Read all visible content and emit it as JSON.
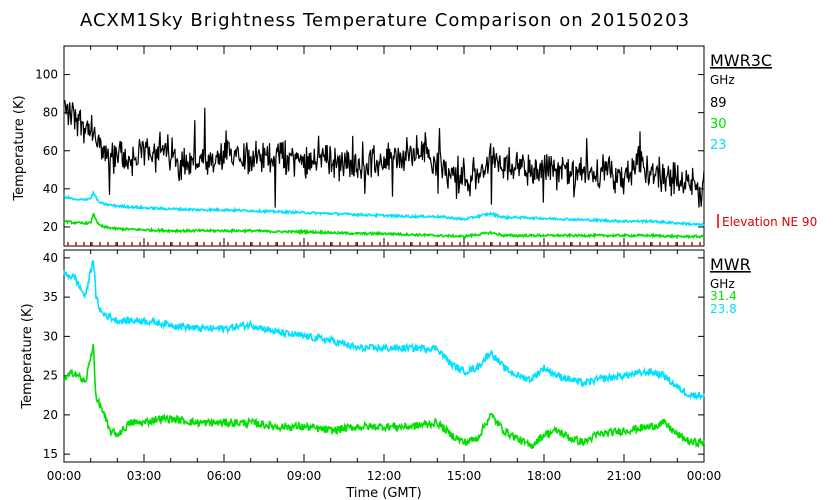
{
  "chart_data": [
    {
      "type": "line",
      "title": "ACXM1Sky Brightness Temperature Comparison on 20150203",
      "ylabel": "Temperature (K)",
      "ylim": [
        10,
        115
      ],
      "yticks": [
        "20",
        "40",
        "60",
        "80",
        "100"
      ],
      "xlim": [
        0,
        24
      ],
      "legend": {
        "heading": "MWR3C",
        "unit": "GHz"
      },
      "series": [
        {
          "name": "89",
          "color": "#000000",
          "x": [
            0,
            0.5,
            1,
            1.5,
            2,
            2.5,
            3,
            3.5,
            4,
            4.5,
            5,
            5.5,
            6,
            6.5,
            7,
            7.5,
            8,
            8.5,
            9,
            9.5,
            10,
            10.5,
            11,
            11.5,
            12,
            12.5,
            13,
            13.5,
            14,
            14.5,
            15,
            15.5,
            16,
            16.5,
            17,
            17.5,
            18,
            18.5,
            19,
            19.5,
            20,
            20.5,
            21,
            21.5,
            22,
            22.5,
            23,
            23.5,
            24
          ],
          "y": [
            83,
            78,
            70,
            58,
            57,
            55,
            58,
            62,
            58,
            53,
            55,
            52,
            56,
            60,
            57,
            55,
            58,
            56,
            55,
            58,
            56,
            52,
            53,
            52,
            54,
            56,
            58,
            60,
            55,
            48,
            47,
            45,
            57,
            50,
            55,
            48,
            52,
            50,
            48,
            47,
            50,
            48,
            45,
            52,
            50,
            48,
            45,
            42,
            40
          ],
          "noise": 8
        },
        {
          "name": "30",
          "color": "#00e000",
          "x": [
            0,
            0.5,
            1,
            1.1,
            1.3,
            1.5,
            2,
            3,
            4,
            5,
            6,
            7,
            8,
            9,
            10,
            11,
            12,
            13,
            14,
            15,
            16,
            16.5,
            17,
            18,
            19,
            20,
            21,
            22,
            23,
            24
          ],
          "y": [
            23,
            22,
            22,
            27,
            21,
            20,
            19,
            18.5,
            18,
            18,
            18,
            18,
            17.5,
            17.5,
            17,
            16.5,
            16.5,
            16,
            15.5,
            15,
            17,
            15.5,
            15.5,
            15.5,
            15.5,
            15.5,
            15.5,
            15.5,
            15,
            15
          ],
          "noise": 0.6
        },
        {
          "name": "23",
          "color": "#00e0ff",
          "x": [
            0,
            0.5,
            1,
            1.1,
            1.3,
            1.5,
            2,
            3,
            4,
            5,
            6,
            7,
            8,
            9,
            10,
            11,
            12,
            13,
            14,
            15,
            16,
            16.5,
            17,
            18,
            19,
            20,
            21,
            22,
            23,
            24
          ],
          "y": [
            36,
            34,
            35,
            38,
            33,
            32,
            31,
            30,
            29.5,
            29,
            29,
            28.5,
            28,
            27.5,
            27,
            26.5,
            26,
            25.5,
            25.5,
            24,
            27,
            25,
            25,
            24.5,
            24,
            23.5,
            23,
            23,
            22,
            21
          ],
          "noise": 0.6
        }
      ],
      "marker_label": "Elevation NE 90",
      "marker_color": "#e00000"
    },
    {
      "type": "line",
      "ylabel": "Temperature (K)",
      "xlabel": "Time (GMT)",
      "ylim": [
        14,
        41
      ],
      "yticks": [
        "15",
        "20",
        "25",
        "30",
        "35",
        "40"
      ],
      "xlim": [
        0,
        24
      ],
      "xticks": [
        "00:00",
        "03:00",
        "06:00",
        "09:00",
        "12:00",
        "15:00",
        "18:00",
        "21:00",
        "00:00"
      ],
      "legend": {
        "heading": "MWR",
        "unit": "GHz"
      },
      "series": [
        {
          "name": "31.4",
          "color": "#00e000",
          "x": [
            0,
            0.4,
            0.8,
            1.1,
            1.2,
            1.4,
            1.7,
            2,
            2.5,
            3,
            3.5,
            4,
            5,
            6,
            7,
            8,
            9,
            10,
            11,
            12,
            13,
            14,
            14.5,
            15,
            15.5,
            16,
            16.5,
            17,
            17.5,
            18,
            18.5,
            19,
            19.5,
            20,
            21,
            22,
            22.5,
            23,
            23.5,
            24
          ],
          "y": [
            24.5,
            25.5,
            24,
            29,
            22,
            21,
            18,
            17.5,
            19,
            19,
            19.5,
            19.5,
            19,
            19,
            19,
            18.5,
            18.5,
            18,
            18.5,
            18.5,
            18.5,
            19,
            17.5,
            16.5,
            17,
            20,
            18,
            17,
            16,
            17.5,
            18,
            17,
            16.5,
            17.5,
            18,
            18.5,
            19,
            17.5,
            16.5,
            16.5
          ],
          "noise": 0.5
        },
        {
          "name": "23.8",
          "color": "#00e0ff",
          "x": [
            0,
            0.4,
            0.8,
            1.1,
            1.2,
            1.4,
            2,
            2.5,
            3,
            4,
            5,
            6,
            7,
            8,
            9,
            10,
            11,
            12,
            13,
            14,
            14.5,
            15,
            15.5,
            16,
            16.5,
            17,
            17.5,
            18,
            18.5,
            19,
            19.5,
            20,
            21,
            22,
            22.5,
            23,
            23.5,
            24
          ],
          "y": [
            38,
            37.5,
            35,
            40,
            35,
            33,
            32,
            32,
            32,
            31.5,
            31,
            31,
            31.5,
            30.5,
            30,
            29.5,
            28.5,
            28.5,
            28.5,
            28.5,
            26.5,
            25.5,
            26,
            28,
            26,
            25,
            24.5,
            26,
            25,
            24.5,
            24,
            24.5,
            25,
            25.5,
            25,
            23.5,
            22.5,
            22.5
          ],
          "noise": 0.45
        }
      ]
    }
  ]
}
